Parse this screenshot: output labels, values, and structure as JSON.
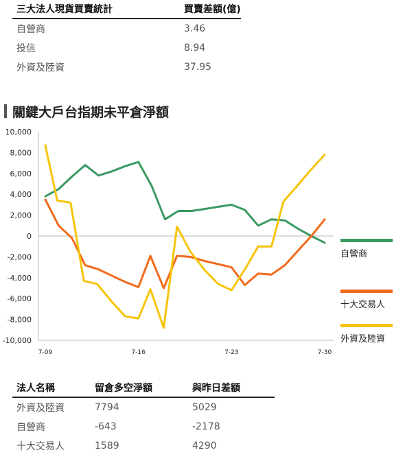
{
  "top_table": {
    "headers": [
      "三大法人現貨買賣統計",
      "買賣差額(億)"
    ],
    "rows": [
      {
        "name": "自營商",
        "value": "3.46"
      },
      {
        "name": "投信",
        "value": "8.94"
      },
      {
        "name": "外資及陸資",
        "value": "37.95"
      }
    ]
  },
  "section_title": "關鍵大戶台指期未平倉淨額",
  "chart_data": {
    "type": "line",
    "title": "",
    "xlabel": "",
    "ylabel": "",
    "ylim": [
      -10000,
      10000
    ],
    "yticks": [
      "10,000",
      "8,000",
      "6,000",
      "4,000",
      "2,000",
      "0",
      "-2,000",
      "-4,000",
      "-6,000",
      "-8,000",
      "-10,000"
    ],
    "x_ticks": [
      {
        "x": 1,
        "label": "7-09"
      },
      {
        "x": 8,
        "label": "7-16"
      },
      {
        "x": 15,
        "label": "7-23"
      },
      {
        "x": 22,
        "label": "7-30"
      }
    ],
    "x_range": [
      1,
      22
    ],
    "grid": false,
    "legend_position": "right",
    "series": [
      {
        "name": "自營商",
        "color": "#3a9a62",
        "points": [
          [
            1,
            3800
          ],
          [
            2,
            4500
          ],
          [
            3,
            5700
          ],
          [
            4,
            6800
          ],
          [
            5,
            5800
          ],
          [
            6,
            6200
          ],
          [
            7,
            6700
          ],
          [
            8,
            7100
          ],
          [
            9,
            4800
          ],
          [
            10,
            1600
          ],
          [
            11,
            2400
          ],
          [
            12,
            2400
          ],
          [
            13,
            2600
          ],
          [
            14,
            2800
          ],
          [
            15,
            3000
          ],
          [
            16,
            2500
          ],
          [
            17,
            1000
          ],
          [
            18,
            1600
          ],
          [
            19,
            1500
          ],
          [
            20,
            700
          ],
          [
            21,
            0
          ],
          [
            22,
            -643
          ]
        ]
      },
      {
        "name": "十大交易人",
        "color": "#f26a1b",
        "points": [
          [
            1,
            3500
          ],
          [
            2,
            1000
          ],
          [
            3,
            -200
          ],
          [
            4,
            -2800
          ],
          [
            5,
            -3200
          ],
          [
            6,
            -3800
          ],
          [
            7,
            -4400
          ],
          [
            8,
            -4900
          ],
          [
            8.9,
            -1900
          ],
          [
            9.9,
            -5000
          ],
          [
            10.9,
            -1900
          ],
          [
            11.9,
            -2000
          ],
          [
            13,
            -2400
          ],
          [
            14,
            -2700
          ],
          [
            15,
            -3000
          ],
          [
            16,
            -4700
          ],
          [
            17,
            -3600
          ],
          [
            18,
            -3700
          ],
          [
            19,
            -2800
          ],
          [
            20,
            -1400
          ],
          [
            21,
            0
          ],
          [
            22,
            1589
          ]
        ]
      },
      {
        "name": "外資及陸資",
        "color": "#f7c40b",
        "points": [
          [
            1,
            8700
          ],
          [
            1.9,
            3400
          ],
          [
            2.9,
            3200
          ],
          [
            3.9,
            -4300
          ],
          [
            4.9,
            -4600
          ],
          [
            6,
            -6300
          ],
          [
            7,
            -7700
          ],
          [
            8,
            -7900
          ],
          [
            8.9,
            -5100
          ],
          [
            9.9,
            -8800
          ],
          [
            10.9,
            900
          ],
          [
            11.9,
            -1500
          ],
          [
            13,
            -3300
          ],
          [
            14,
            -4600
          ],
          [
            15,
            -5200
          ],
          [
            16,
            -3200
          ],
          [
            17,
            -1000
          ],
          [
            18,
            -1000
          ],
          [
            18.9,
            3300
          ],
          [
            20,
            4900
          ],
          [
            21,
            6400
          ],
          [
            22,
            7794
          ]
        ]
      }
    ]
  },
  "bottom_table": {
    "headers": [
      "法人名稱",
      "留倉多空淨額",
      "與昨日差額"
    ],
    "rows": [
      {
        "name": "外資及陸資",
        "net": "7794",
        "diff": "5029"
      },
      {
        "name": "自營商",
        "net": "-643",
        "diff": "-2178"
      },
      {
        "name": "十大交易人",
        "net": "1589",
        "diff": "4290"
      }
    ]
  }
}
